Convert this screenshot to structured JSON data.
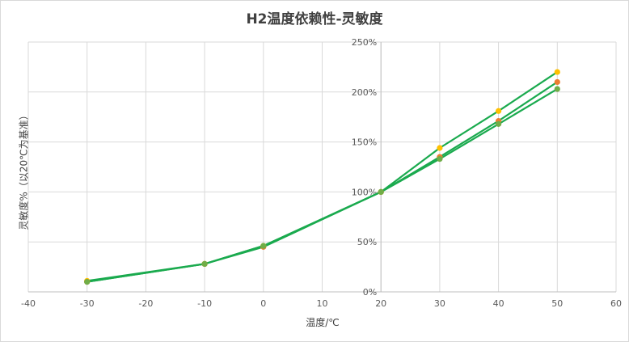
{
  "chart_data": {
    "type": "scatter",
    "title": "H2温度依赖性-灵敏度",
    "xlabel": "温度/℃",
    "ylabel": "灵敏度%（以20℃为基准）",
    "xlim": [
      -40,
      60
    ],
    "ylim": [
      0,
      250
    ],
    "x_ticks": [
      "-40",
      "-30",
      "-20",
      "-10",
      "0",
      "10",
      "20",
      "30",
      "40",
      "50",
      "60"
    ],
    "y_ticks": [
      "0%",
      "50%",
      "100%",
      "150%",
      "200%",
      "250%"
    ],
    "grid": true,
    "legend": "none",
    "line_color": "#1aaa4e",
    "series": [
      {
        "color": "#ffc000",
        "points": [
          {
            "x": -30,
            "y": 11
          },
          {
            "x": -10,
            "y": 28
          },
          {
            "x": 0,
            "y": 46
          },
          {
            "x": 20,
            "y": 100
          },
          {
            "x": 30,
            "y": 144
          },
          {
            "x": 40,
            "y": 181
          },
          {
            "x": 50,
            "y": 220
          }
        ]
      },
      {
        "color": "#ed7d31",
        "points": [
          {
            "x": -30,
            "y": 10
          },
          {
            "x": -10,
            "y": 28
          },
          {
            "x": 0,
            "y": 45
          },
          {
            "x": 20,
            "y": 100
          },
          {
            "x": 30,
            "y": 135
          },
          {
            "x": 40,
            "y": 171
          },
          {
            "x": 50,
            "y": 210
          }
        ]
      },
      {
        "color": "#70ad47",
        "points": [
          {
            "x": -30,
            "y": 10
          },
          {
            "x": -10,
            "y": 28
          },
          {
            "x": 0,
            "y": 46
          },
          {
            "x": 20,
            "y": 100
          },
          {
            "x": 30,
            "y": 133
          },
          {
            "x": 40,
            "y": 168
          },
          {
            "x": 50,
            "y": 203
          }
        ]
      }
    ]
  }
}
